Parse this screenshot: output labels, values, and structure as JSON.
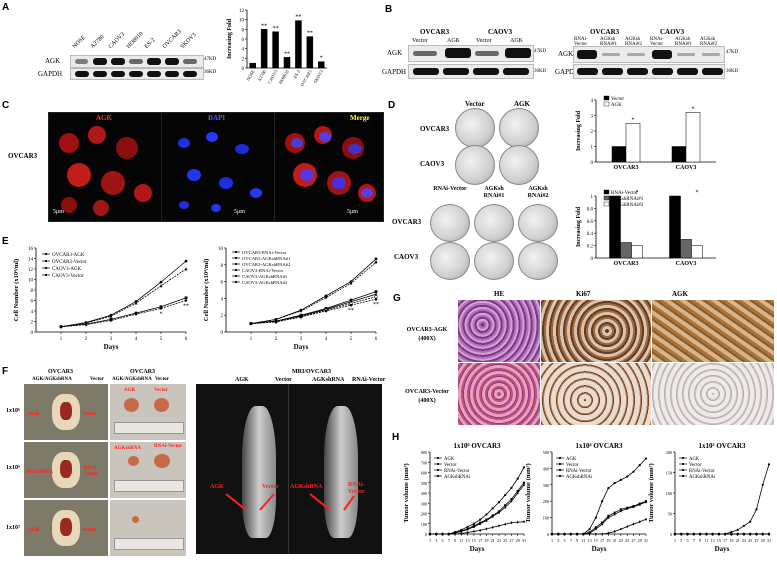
{
  "panels": {
    "A": "A",
    "B": "B",
    "C": "C",
    "D": "D",
    "E": "E",
    "F": "F",
    "G": "G",
    "H": "H"
  },
  "panelA": {
    "lanes": [
      "NOSE",
      "A2780",
      "CAOV3",
      "HO8910",
      "ES-2",
      "OVCAR3",
      "SKOV3"
    ],
    "rows": [
      "AGK",
      "GAPDH"
    ],
    "sizes": [
      "47KD",
      "36KD"
    ],
    "chart_data": {
      "type": "bar",
      "categories": [
        "NOSE",
        "A2780",
        "CAOV3",
        "HO8910",
        "ES-2",
        "OVCAR3",
        "SKOV3"
      ],
      "values": [
        1.0,
        8.0,
        7.5,
        2.2,
        9.8,
        6.5,
        1.3
      ],
      "significance": [
        "",
        "**",
        "**",
        "**",
        "**",
        "**",
        "*"
      ],
      "ylabel": "Increasing Fold",
      "ylim": [
        0,
        12
      ],
      "yticks": [
        0,
        2,
        4,
        6,
        8,
        10,
        12
      ]
    }
  },
  "panelB": {
    "left_groups": [
      "OVCAR3",
      "CAOV3"
    ],
    "left_lanes": [
      "Vector",
      "AGK",
      "Vector",
      "AGK"
    ],
    "right_groups": [
      "OVCAR3",
      "CAOV3"
    ],
    "right_lanes": [
      "RNAi-Vector",
      "AGKsh RNAi#1",
      "AGKsh RNAi#2",
      "RNAi-Vector",
      "AGKsh RNAi#1",
      "AGKsh RNAi#2"
    ],
    "rows": [
      "AGK",
      "GAPDH"
    ],
    "sizes": [
      "47KD",
      "36KD"
    ]
  },
  "panelC": {
    "cell": "OVCAR3",
    "channels": [
      "AGK",
      "DAPI",
      "Merge"
    ],
    "channel_colors": [
      "#ff3030",
      "#4a5cff",
      "#ffff40"
    ],
    "scalebar": "5μm"
  },
  "panelD": {
    "top_cols": [
      "Vector",
      "AGK"
    ],
    "top_rows": [
      "OVCAR3",
      "CAOV3"
    ],
    "bottom_cols": [
      "RNAi-Vector",
      "AGKsh RNAi#1",
      "AGKsh RNAi#2"
    ],
    "bottom_rows": [
      "OVCAR3",
      "CAOV3"
    ],
    "chart_data": [
      {
        "type": "bar",
        "categories": [
          "OVCAR3",
          "CAOV3"
        ],
        "series": [
          {
            "name": "Vector",
            "values": [
              1.0,
              1.0
            ]
          },
          {
            "name": "AGK",
            "values": [
              2.5,
              3.2
            ]
          }
        ],
        "significance": [
          "*",
          "*"
        ],
        "ylabel": "Increasing Fold",
        "ylim": [
          0,
          4
        ],
        "yticks": [
          0,
          1,
          2,
          3,
          4
        ]
      },
      {
        "type": "bar",
        "categories": [
          "OVCAR3",
          "CAOV3"
        ],
        "series": [
          {
            "name": "RNAi-Vector",
            "values": [
              1.0,
              1.0
            ]
          },
          {
            "name": "AGKshRNAi#1",
            "values": [
              0.25,
              0.3
            ]
          },
          {
            "name": "AGKshRNAi#2",
            "values": [
              0.2,
              0.2
            ]
          }
        ],
        "significance": [
          "*",
          "*"
        ],
        "ylabel": "Increasing Fold",
        "ylim": [
          0,
          1.0
        ],
        "yticks": [
          0.0,
          0.2,
          0.4,
          0.6,
          0.8,
          1.0
        ]
      }
    ]
  },
  "panelE": {
    "chart_data": [
      {
        "type": "line",
        "x": [
          1,
          2,
          3,
          4,
          5,
          6
        ],
        "series": [
          {
            "name": "OVCAR3-AGK",
            "values": [
              1.0,
              1.8,
              3.2,
              5.8,
              9.5,
              13.5
            ]
          },
          {
            "name": "OVCAR3-Vector",
            "values": [
              1.0,
              1.5,
              2.4,
              3.6,
              4.8,
              6.5
            ]
          },
          {
            "name": "CAOV3-AGK",
            "values": [
              1.0,
              1.7,
              3.0,
              5.5,
              8.8,
              12.0
            ]
          },
          {
            "name": "CAOV3-Vector",
            "values": [
              1.0,
              1.4,
              2.2,
              3.4,
              4.5,
              6.0
            ]
          }
        ],
        "significance": [
          "",
          "",
          "",
          "",
          "*",
          "**"
        ],
        "xlabel": "Days",
        "ylabel": "Cell Number (x10⁴/ml)",
        "xlim": [
          0,
          6
        ],
        "ylim": [
          0,
          16
        ],
        "yticks": [
          0,
          2,
          4,
          6,
          8,
          10,
          12,
          14,
          16
        ]
      },
      {
        "type": "line",
        "x": [
          1,
          2,
          3,
          4,
          5,
          6
        ],
        "series": [
          {
            "name": "OVCAR3-RNAi-Vector",
            "values": [
              1.0,
              1.5,
              2.6,
              4.3,
              6.0,
              8.7
            ]
          },
          {
            "name": "OVCAR3-AGKshRNA#1",
            "values": [
              1.0,
              1.3,
              2.0,
              2.8,
              3.8,
              4.8
            ]
          },
          {
            "name": "OVCAR3-AGKshRNA#2",
            "values": [
              1.0,
              1.3,
              1.9,
              2.7,
              3.6,
              4.5
            ]
          },
          {
            "name": "CAOV3-RNAi-Vector",
            "values": [
              1.0,
              1.5,
              2.5,
              4.1,
              5.8,
              8.3
            ]
          },
          {
            "name": "CAOV3-AGKshRNA#1",
            "values": [
              1.0,
              1.2,
              1.8,
              2.6,
              3.4,
              4.2
            ]
          },
          {
            "name": "CAOV3-AGKshRNA#2",
            "values": [
              1.0,
              1.2,
              1.8,
              2.5,
              3.2,
              3.9
            ]
          }
        ],
        "significance": [
          "",
          "",
          "",
          "",
          "**",
          "**"
        ],
        "xlabel": "Days",
        "ylabel": "Cell Number (x10⁴/ml)",
        "xlim": [
          0,
          6
        ],
        "ylim": [
          0,
          10
        ],
        "yticks": [
          0,
          2,
          4,
          6,
          8,
          10
        ]
      }
    ]
  },
  "panelF": {
    "col_titles": [
      "OVCAR3",
      "OVCAR3",
      "MRI/OVCAR3"
    ],
    "col_subtitles": [
      "AGK/AGKshRNA",
      "Vector",
      "AGK/AGKshRNA",
      "Vector"
    ],
    "mri_labels": [
      "AGK",
      "Vector",
      "AGKshRNA",
      "RNAi-Vector"
    ],
    "rows": [
      "1x10⁶",
      "1x10⁴",
      "1x10³"
    ],
    "tumor_labels": [
      "AGK",
      "Vector",
      "AGK",
      "Vector",
      "AGKshRNA",
      "RNAi-Vector",
      "AGKshRNA",
      "RNAi-Vector",
      "AGK",
      "Vector"
    ],
    "mri_arrow_labels": [
      "AGK",
      "Vector",
      "AGKshRNA",
      "RNAi-Vector"
    ]
  },
  "panelG": {
    "cols": [
      "HE",
      "Ki67",
      "AGK"
    ],
    "rows": [
      "OVCAR3-AGK (400X)",
      "OVCAR3-Vector (400X)"
    ]
  },
  "panelH": {
    "chart_data": [
      {
        "type": "line",
        "title": "1x10⁶ OVCAR3",
        "x": [
          1,
          3,
          5,
          7,
          9,
          11,
          13,
          15,
          17,
          19,
          21,
          23,
          25,
          27,
          29,
          31
        ],
        "series": [
          {
            "name": "AGK",
            "values": [
              0,
              0,
              0,
              0,
              20,
              40,
              70,
              100,
              140,
              190,
              250,
              310,
              380,
              450,
              540,
              650
            ]
          },
          {
            "name": "Vector",
            "values": [
              0,
              0,
              0,
              0,
              10,
              30,
              50,
              80,
              110,
              140,
              180,
              220,
              280,
              340,
              420,
              500
            ]
          },
          {
            "name": "RNAi-Vector",
            "values": [
              0,
              0,
              0,
              0,
              10,
              25,
              45,
              70,
              100,
              130,
              170,
              210,
              260,
              320,
              400,
              480
            ]
          },
          {
            "name": "AGKshRNAi",
            "values": [
              0,
              0,
              0,
              0,
              0,
              5,
              15,
              25,
              35,
              50,
              65,
              80,
              95,
              110,
              115,
              120
            ]
          }
        ],
        "xlabel": "Days",
        "ylabel": "Tumor volume (mm³)",
        "ylim": [
          0,
          800
        ],
        "yticks": [
          0,
          100,
          200,
          300,
          400,
          500,
          600,
          700,
          800
        ]
      },
      {
        "type": "line",
        "title": "1x10⁴ OVCAR3",
        "x": [
          1,
          3,
          5,
          7,
          9,
          11,
          13,
          15,
          17,
          19,
          21,
          23,
          25,
          27,
          29,
          31
        ],
        "series": [
          {
            "name": "AGK",
            "values": [
              0,
              0,
              0,
              0,
              0,
              0,
              30,
              100,
              200,
              280,
              310,
              330,
              350,
              380,
              420,
              460
            ]
          },
          {
            "name": "Vector",
            "values": [
              0,
              0,
              0,
              0,
              0,
              0,
              10,
              40,
              70,
              110,
              130,
              150,
              160,
              170,
              185,
              200
            ]
          },
          {
            "name": "RNAi-Vector",
            "values": [
              0,
              0,
              0,
              0,
              0,
              0,
              5,
              30,
              60,
              100,
              120,
              140,
              155,
              165,
              180,
              195
            ]
          },
          {
            "name": "AGKshRNAi",
            "values": [
              0,
              0,
              0,
              0,
              0,
              0,
              0,
              0,
              0,
              5,
              15,
              30,
              45,
              60,
              75,
              90
            ]
          }
        ],
        "xlabel": "Days",
        "ylabel": "Tumor volume (mm³)",
        "ylim": [
          0,
          500
        ],
        "yticks": [
          0,
          100,
          200,
          300,
          400,
          500
        ]
      },
      {
        "type": "line",
        "title": "1x10³ OVCAR3",
        "x": [
          1,
          3,
          5,
          7,
          9,
          11,
          13,
          15,
          17,
          19,
          21,
          23,
          25,
          27,
          29,
          31
        ],
        "series": [
          {
            "name": "AGK",
            "values": [
              0,
              0,
              0,
              0,
              0,
              0,
              0,
              0,
              0,
              5,
              10,
              20,
              30,
              60,
              120,
              170
            ]
          },
          {
            "name": "Vector",
            "values": [
              0,
              0,
              0,
              0,
              0,
              0,
              0,
              0,
              0,
              0,
              0,
              0,
              0,
              0,
              0,
              0
            ]
          },
          {
            "name": "RNAi-Vector",
            "values": [
              0,
              0,
              0,
              0,
              0,
              0,
              0,
              0,
              0,
              0,
              0,
              0,
              0,
              0,
              0,
              0
            ]
          },
          {
            "name": "AGKshRNAi",
            "values": [
              0,
              0,
              0,
              0,
              0,
              0,
              0,
              0,
              0,
              0,
              0,
              0,
              0,
              0,
              0,
              0
            ]
          }
        ],
        "xlabel": "Days",
        "ylabel": "Tumor volume (mm³)",
        "ylim": [
          0,
          200
        ],
        "yticks": [
          0,
          50,
          100,
          150,
          200
        ]
      }
    ]
  }
}
